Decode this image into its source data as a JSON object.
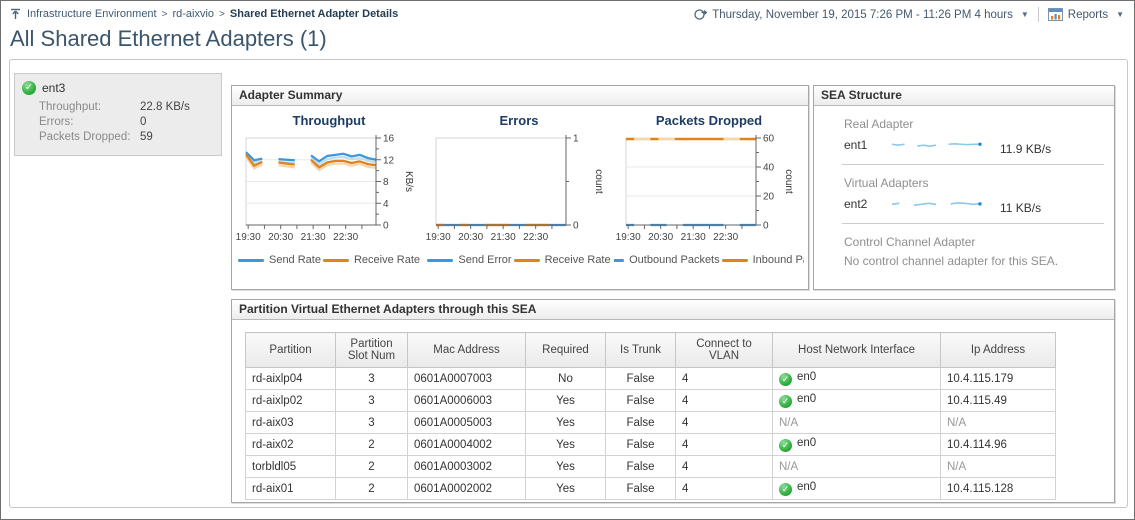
{
  "breadcrumb": {
    "separator": ">",
    "items": [
      {
        "label": "Infrastructure Environment",
        "current": false
      },
      {
        "label": "rd-aixvio",
        "current": false
      },
      {
        "label": "Shared Ethernet Adapter Details",
        "current": true
      }
    ]
  },
  "header": {
    "time_range": "Thursday, November 19, 2015 7:26 PM - 11:26 PM 4 hours",
    "reports_label": "Reports"
  },
  "page_title": "All Shared Ethernet Adapters (1)",
  "adapter_card": {
    "name": "ent3",
    "rows": [
      {
        "label": "Throughput:",
        "value": "22.8 KB/s"
      },
      {
        "label": "Errors:",
        "value": "0"
      },
      {
        "label": "Packets Dropped:",
        "value": "59"
      }
    ]
  },
  "panels": {
    "adapter_summary_title": "Adapter Summary",
    "sea_structure_title": "SEA Structure",
    "table_title": "Partition Virtual Ethernet Adapters through this SEA"
  },
  "chart_data": [
    {
      "type": "line",
      "title": "Throughput",
      "ylabel": "KB/s",
      "ylim": [
        0,
        16
      ],
      "yticks": [
        0,
        4,
        8,
        12,
        16
      ],
      "yminor": [
        2,
        6,
        10,
        14
      ],
      "x_minutes_range": [
        0,
        240
      ],
      "x_start_label": "19:26",
      "xticks_minutes": [
        4,
        34,
        64,
        94,
        124,
        154,
        184,
        214
      ],
      "xtick_labels": [
        {
          "m": 4,
          "label": "19:30"
        },
        {
          "m": 64,
          "label": "20:30"
        },
        {
          "m": 124,
          "label": "21:30"
        },
        {
          "m": 184,
          "label": "22:30"
        }
      ],
      "x": [
        0,
        15,
        30,
        45,
        60,
        75,
        90,
        105,
        120,
        135,
        150,
        165,
        180,
        195,
        210,
        225,
        240
      ],
      "series": [
        {
          "name": "",
          "color": "#BFDDF1",
          "width": 2.2,
          "legend": false,
          "values": [
            12.7,
            11.4,
            11.7,
            null,
            11.6,
            11.5,
            11.4,
            null,
            12.3,
            11.1,
            12.1,
            12.4,
            12.5,
            12.1,
            12.3,
            11.8,
            11.5
          ]
        },
        {
          "name": "",
          "color": "#F2D7AE",
          "width": 2.2,
          "legend": false,
          "values": [
            12.5,
            10.4,
            11.1,
            null,
            11.0,
            10.8,
            10.6,
            null,
            11.5,
            10.1,
            11.0,
            11.3,
            11.3,
            10.9,
            11.2,
            10.7,
            10.5
          ]
        },
        {
          "name": "Send Rate",
          "color": "#3B97DE",
          "width": 2.3,
          "legend": true,
          "values": [
            13.4,
            11.9,
            12.2,
            null,
            12.1,
            12.0,
            11.9,
            null,
            12.8,
            11.7,
            12.7,
            12.9,
            13.1,
            12.6,
            12.9,
            12.3,
            12.0
          ]
        },
        {
          "name": "Receive Rate",
          "color": "#E2821A",
          "width": 2.3,
          "legend": true,
          "values": [
            13.0,
            10.9,
            11.6,
            null,
            11.5,
            11.3,
            11.1,
            null,
            12.0,
            10.6,
            11.5,
            11.8,
            11.8,
            11.4,
            11.7,
            11.2,
            11.0
          ]
        }
      ]
    },
    {
      "type": "line",
      "title": "Errors",
      "ylabel": "count",
      "ylim": [
        0,
        1
      ],
      "yticks": [
        0,
        1
      ],
      "yminor": [
        0.5
      ],
      "x_minutes_range": [
        0,
        240
      ],
      "x_start_label": "19:26",
      "xticks_minutes": [
        4,
        34,
        64,
        94,
        124,
        154,
        184,
        214
      ],
      "xtick_labels": [
        {
          "m": 4,
          "label": "19:30"
        },
        {
          "m": 64,
          "label": "20:30"
        },
        {
          "m": 124,
          "label": "21:30"
        },
        {
          "m": 184,
          "label": "22:30"
        }
      ],
      "x": [
        0,
        15,
        30,
        45,
        60,
        75,
        90,
        105,
        120,
        135,
        150,
        165,
        180,
        195,
        210,
        225,
        240
      ],
      "series": [
        {
          "name": "Send Error",
          "color": "#3B97DE",
          "width": 2.3,
          "legend": true,
          "values": [
            0,
            0,
            0,
            0,
            0,
            0,
            0,
            0,
            0,
            0,
            0,
            0,
            0,
            0,
            0,
            0,
            0
          ]
        },
        {
          "name": "Receive Rate",
          "color": "#E2821A",
          "width": 2.3,
          "legend": true,
          "values": [
            0,
            0,
            null,
            0,
            0,
            null,
            0,
            0,
            0,
            0,
            null,
            0,
            0,
            0,
            0,
            null,
            0
          ]
        }
      ]
    },
    {
      "type": "line",
      "title": "Packets Dropped",
      "ylabel": "count",
      "ylim": [
        0,
        60
      ],
      "yticks": [
        0,
        20,
        40,
        60
      ],
      "yminor": [
        10,
        30,
        50
      ],
      "x_minutes_range": [
        0,
        240
      ],
      "x_start_label": "19:26",
      "xticks_minutes": [
        4,
        34,
        64,
        94,
        124,
        154,
        184,
        214
      ],
      "xtick_labels": [
        {
          "m": 4,
          "label": "19:30"
        },
        {
          "m": 64,
          "label": "20:30"
        },
        {
          "m": 124,
          "label": "21:30"
        },
        {
          "m": 184,
          "label": "22:30"
        }
      ],
      "x": [
        0,
        15,
        30,
        45,
        60,
        75,
        90,
        105,
        120,
        135,
        150,
        165,
        180,
        195,
        210,
        225,
        240
      ],
      "series": [
        {
          "name": "",
          "color": "#F4D9AF",
          "width": 3,
          "legend": false,
          "values": [
            59.3,
            59.3,
            59.3,
            59.3,
            59.3,
            59.3,
            59.3,
            59.3,
            59.3,
            59.3,
            59.3,
            59.3,
            59.3,
            59.3,
            59.3,
            59.3,
            59.3
          ]
        },
        {
          "name": "Outbound Packets",
          "color": "#3B97DE",
          "width": 2.3,
          "legend": true,
          "values": [
            0,
            0,
            null,
            0,
            0,
            0,
            null,
            0,
            0,
            0,
            0,
            0,
            0,
            null,
            0,
            0,
            0
          ]
        },
        {
          "name": "Inbound Pack",
          "color": "#E2821A",
          "width": 2.3,
          "legend": true,
          "values": [
            59.3,
            59.3,
            null,
            59.3,
            59.3,
            null,
            59.3,
            59.3,
            59.3,
            59.3,
            59.3,
            59.3,
            59.3,
            null,
            59.3,
            59.3,
            59.3
          ]
        }
      ]
    }
  ],
  "sea_structure": {
    "sections": [
      {
        "label": "Real Adapter",
        "name": "ent1",
        "value": "11.9 KB/s",
        "sparkline": [
          11.9,
          11.85,
          11.9,
          null,
          11.8,
          11.85,
          11.8,
          11.85,
          null,
          11.9,
          11.92,
          11.9,
          11.88,
          11.9,
          11.9
        ]
      },
      {
        "label": "Virtual Adapters",
        "name": "ent2",
        "value": "11 KB/s",
        "sparkline": [
          11.0,
          11.05,
          null,
          10.95,
          11.0,
          11.05,
          11.0,
          null,
          11.02,
          11.08,
          11.05,
          11.0,
          11.02
        ]
      },
      {
        "label": "Control Channel Adapter",
        "text": "No control channel adapter for this SEA."
      }
    ]
  },
  "table": {
    "columns": [
      "Partition",
      "Partition Slot Num",
      "Mac Address",
      "Required",
      "Is Trunk",
      "Connect to VLAN",
      "Host Network Interface",
      "Ip Address"
    ],
    "rows": [
      {
        "partition": "rd-aixlp04",
        "slot": "3",
        "mac": "0601A0007003",
        "required": "No",
        "trunk": "False",
        "vlan": "4",
        "hni": "en0",
        "hni_ok": true,
        "ip": "10.4.115.179"
      },
      {
        "partition": "rd-aixlp02",
        "slot": "3",
        "mac": "0601A0006003",
        "required": "Yes",
        "trunk": "False",
        "vlan": "4",
        "hni": "en0",
        "hni_ok": true,
        "ip": "10.4.115.49"
      },
      {
        "partition": "rd-aix03",
        "slot": "3",
        "mac": "0601A0005003",
        "required": "Yes",
        "trunk": "False",
        "vlan": "4",
        "hni": "N/A",
        "hni_ok": false,
        "ip": "N/A"
      },
      {
        "partition": "rd-aix02",
        "slot": "2",
        "mac": "0601A0004002",
        "required": "Yes",
        "trunk": "False",
        "vlan": "4",
        "hni": "en0",
        "hni_ok": true,
        "ip": "10.4.114.96"
      },
      {
        "partition": "torbldl05",
        "slot": "2",
        "mac": "0601A0003002",
        "required": "Yes",
        "trunk": "False",
        "vlan": "4",
        "hni": "N/A",
        "hni_ok": false,
        "ip": "N/A"
      },
      {
        "partition": "rd-aix01",
        "slot": "2",
        "mac": "0601A0002002",
        "required": "Yes",
        "trunk": "False",
        "vlan": "4",
        "hni": "en0",
        "hni_ok": true,
        "ip": "10.4.115.128"
      }
    ]
  },
  "colors": {
    "accent_blue": "#3B97DE",
    "accent_orange": "#E2821A",
    "pale_blue": "#BFDDF1",
    "pale_orange": "#F2D7AE",
    "check_green": "#2FAE3E",
    "spark_line": "#8CC7EE",
    "spark_dot": "#1F7EC2"
  }
}
